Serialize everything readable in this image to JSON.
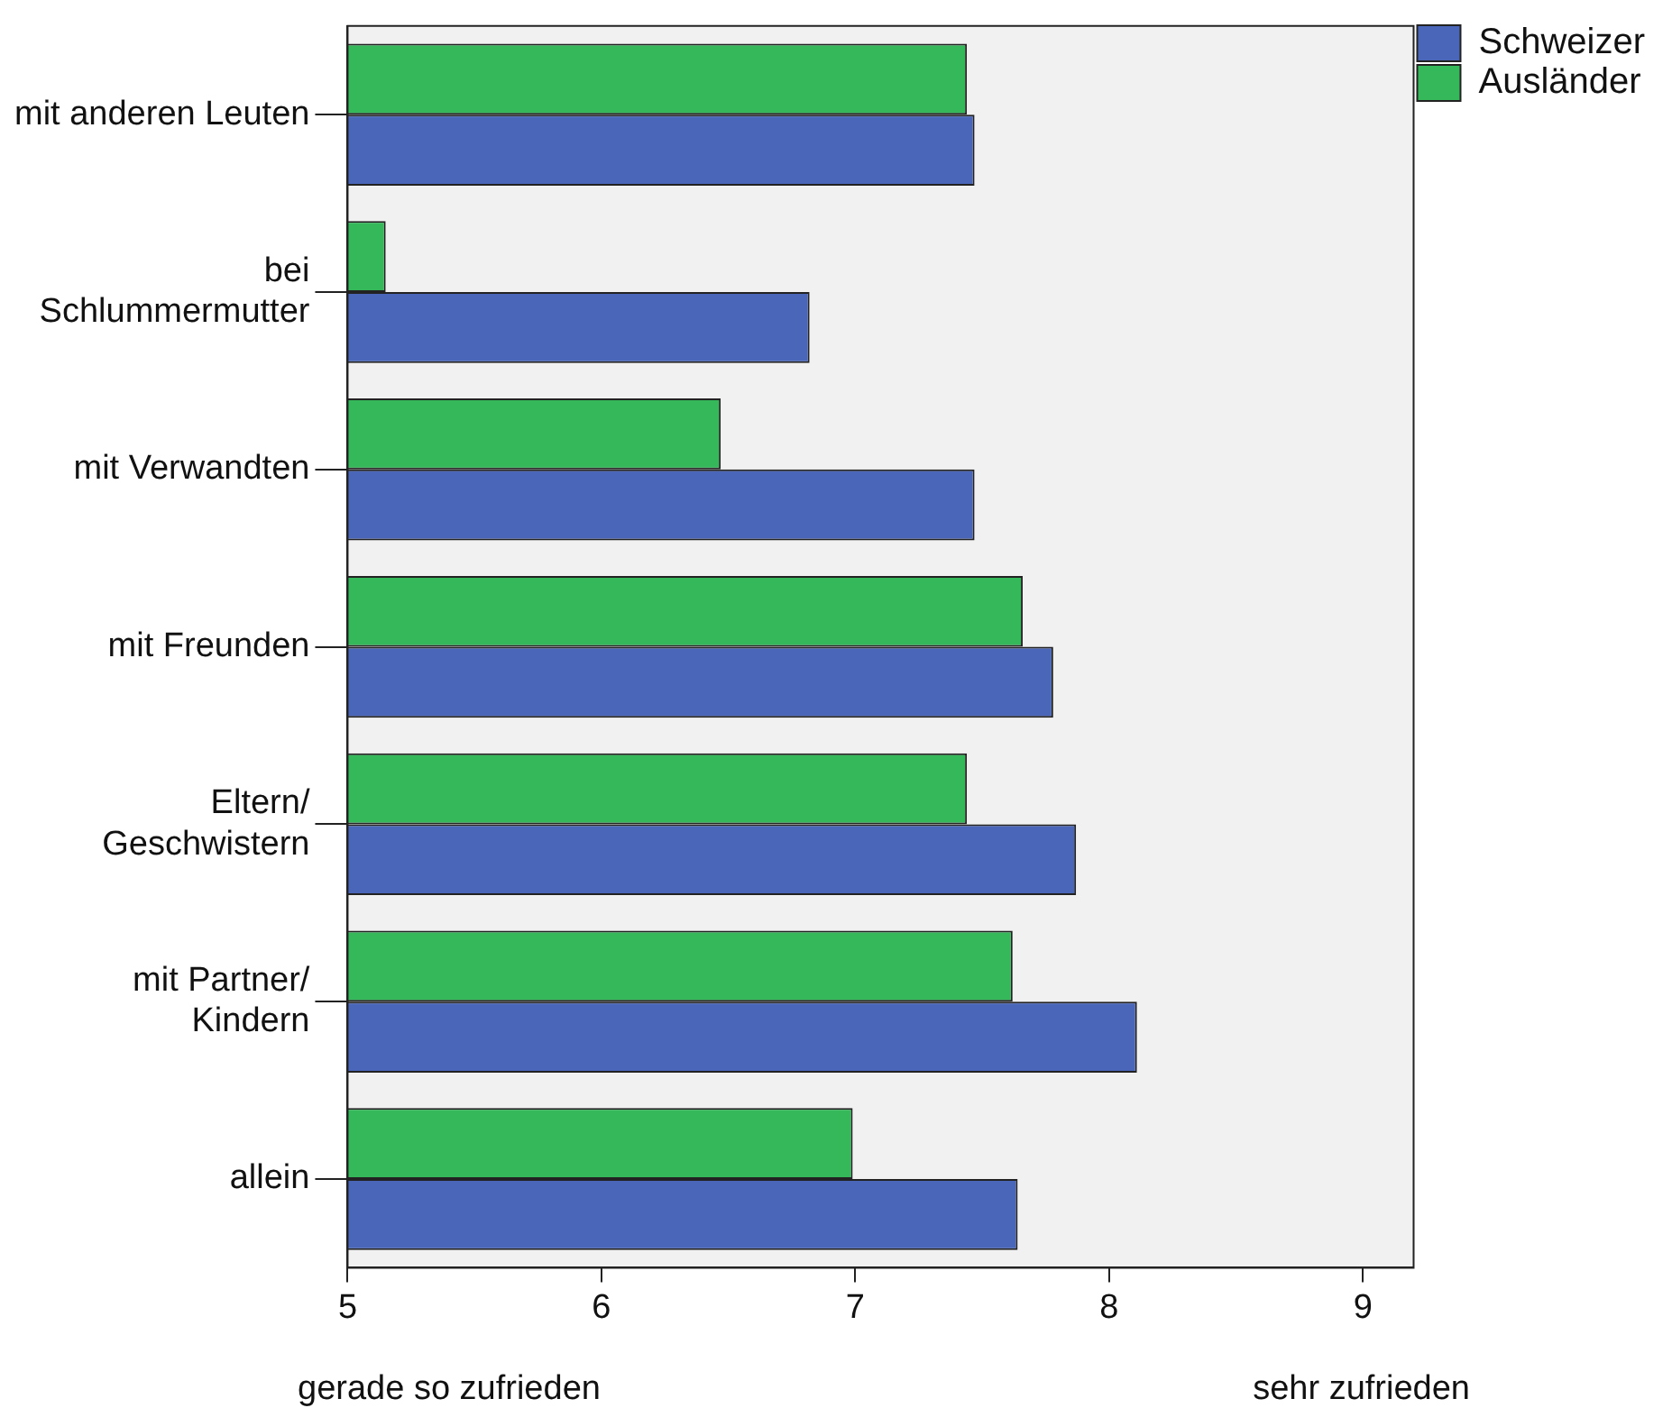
{
  "chart_data": {
    "type": "bar",
    "orientation": "horizontal",
    "categories": [
      "mit anderen Leuten",
      "bei\nSchlummermutter",
      "mit Verwandten",
      "mit Freunden",
      "Eltern/\nGeschwistern",
      "mit Partner/\nKindern",
      "allein"
    ],
    "series": [
      {
        "name": "Schweizer",
        "color": "#4a66b8",
        "values": [
          7.47,
          6.82,
          7.47,
          7.78,
          7.87,
          8.11,
          7.64
        ]
      },
      {
        "name": "Ausländer",
        "color": "#35b85a",
        "values": [
          7.44,
          5.15,
          6.47,
          7.66,
          7.44,
          7.62,
          6.99
        ]
      }
    ],
    "xlim": [
      5,
      9.2
    ],
    "xticks": [
      5,
      6,
      7,
      8,
      9
    ],
    "legend": "top right",
    "annotations": [
      "gerade so zufrieden",
      "sehr zufrieden"
    ]
  }
}
